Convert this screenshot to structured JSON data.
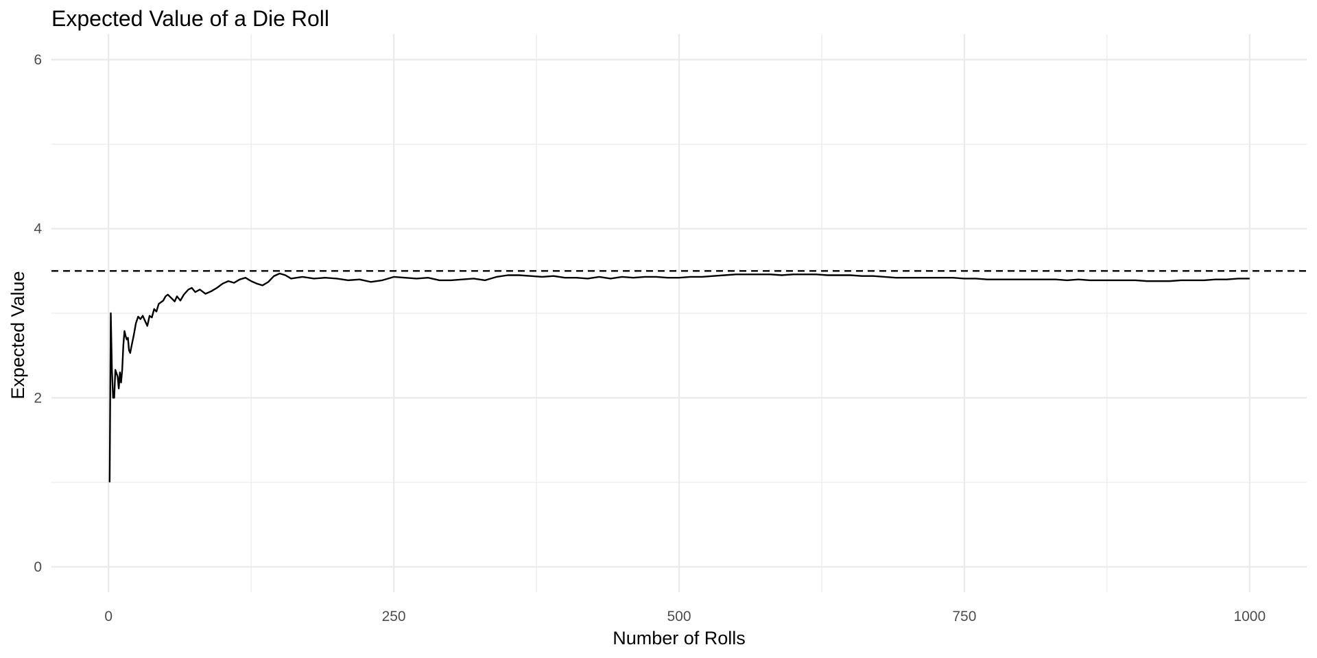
{
  "chart_data": {
    "type": "line",
    "title": "Expected Value of a Die Roll",
    "xlabel": "Number of Rolls",
    "ylabel": "Expected Value",
    "xlim": [
      -50,
      1050
    ],
    "ylim": [
      -0.3,
      6.3
    ],
    "x_ticks": [
      0,
      250,
      500,
      750,
      1000
    ],
    "x_tick_labels": [
      "0",
      "250",
      "500",
      "750",
      "1000"
    ],
    "x_minor_ticks": [
      125,
      375,
      625,
      875
    ],
    "y_ticks": [
      0,
      2,
      4,
      6
    ],
    "y_tick_labels": [
      "0",
      "2",
      "4",
      "6"
    ],
    "y_minor_ticks": [
      1,
      3,
      5
    ],
    "grid": true,
    "legend": "none",
    "reference_line": {
      "y": 3.5,
      "style": "dashed",
      "color": "#000000"
    },
    "series": [
      {
        "color": "#000000",
        "points": [
          [
            1,
            1.0
          ],
          [
            2,
            3.0
          ],
          [
            3,
            2.33
          ],
          [
            4,
            2.0
          ],
          [
            5,
            2.0
          ],
          [
            6,
            2.33
          ],
          [
            7,
            2.29
          ],
          [
            8,
            2.25
          ],
          [
            9,
            2.11
          ],
          [
            10,
            2.3
          ],
          [
            11,
            2.18
          ],
          [
            12,
            2.33
          ],
          [
            13,
            2.62
          ],
          [
            14,
            2.79
          ],
          [
            15,
            2.73
          ],
          [
            16,
            2.69
          ],
          [
            17,
            2.71
          ],
          [
            18,
            2.56
          ],
          [
            19,
            2.53
          ],
          [
            20,
            2.6
          ],
          [
            22,
            2.73
          ],
          [
            24,
            2.88
          ],
          [
            26,
            2.96
          ],
          [
            28,
            2.93
          ],
          [
            30,
            2.97
          ],
          [
            32,
            2.91
          ],
          [
            34,
            2.85
          ],
          [
            36,
            2.97
          ],
          [
            38,
            2.95
          ],
          [
            40,
            3.05
          ],
          [
            42,
            3.02
          ],
          [
            44,
            3.11
          ],
          [
            46,
            3.13
          ],
          [
            48,
            3.15
          ],
          [
            50,
            3.2
          ],
          [
            52,
            3.22
          ],
          [
            55,
            3.18
          ],
          [
            58,
            3.14
          ],
          [
            60,
            3.2
          ],
          [
            63,
            3.15
          ],
          [
            66,
            3.22
          ],
          [
            70,
            3.28
          ],
          [
            73,
            3.3
          ],
          [
            76,
            3.25
          ],
          [
            80,
            3.28
          ],
          [
            85,
            3.23
          ],
          [
            90,
            3.26
          ],
          [
            95,
            3.3
          ],
          [
            100,
            3.35
          ],
          [
            105,
            3.38
          ],
          [
            110,
            3.36
          ],
          [
            115,
            3.4
          ],
          [
            120,
            3.42
          ],
          [
            125,
            3.38
          ],
          [
            130,
            3.35
          ],
          [
            135,
            3.33
          ],
          [
            140,
            3.37
          ],
          [
            145,
            3.44
          ],
          [
            150,
            3.47
          ],
          [
            155,
            3.45
          ],
          [
            160,
            3.41
          ],
          [
            170,
            3.43
          ],
          [
            180,
            3.41
          ],
          [
            190,
            3.42
          ],
          [
            200,
            3.41
          ],
          [
            210,
            3.39
          ],
          [
            220,
            3.4
          ],
          [
            230,
            3.37
          ],
          [
            240,
            3.39
          ],
          [
            250,
            3.43
          ],
          [
            260,
            3.42
          ],
          [
            270,
            3.41
          ],
          [
            280,
            3.42
          ],
          [
            290,
            3.39
          ],
          [
            300,
            3.39
          ],
          [
            310,
            3.4
          ],
          [
            320,
            3.41
          ],
          [
            330,
            3.39
          ],
          [
            340,
            3.43
          ],
          [
            350,
            3.45
          ],
          [
            360,
            3.45
          ],
          [
            370,
            3.44
          ],
          [
            380,
            3.43
          ],
          [
            390,
            3.44
          ],
          [
            400,
            3.42
          ],
          [
            410,
            3.42
          ],
          [
            420,
            3.41
          ],
          [
            430,
            3.43
          ],
          [
            440,
            3.41
          ],
          [
            450,
            3.43
          ],
          [
            460,
            3.42
          ],
          [
            470,
            3.43
          ],
          [
            480,
            3.43
          ],
          [
            490,
            3.42
          ],
          [
            500,
            3.42
          ],
          [
            510,
            3.43
          ],
          [
            520,
            3.43
          ],
          [
            530,
            3.44
          ],
          [
            540,
            3.45
          ],
          [
            550,
            3.46
          ],
          [
            560,
            3.46
          ],
          [
            570,
            3.46
          ],
          [
            580,
            3.46
          ],
          [
            590,
            3.45
          ],
          [
            600,
            3.46
          ],
          [
            610,
            3.46
          ],
          [
            620,
            3.46
          ],
          [
            630,
            3.45
          ],
          [
            640,
            3.45
          ],
          [
            650,
            3.45
          ],
          [
            660,
            3.44
          ],
          [
            670,
            3.44
          ],
          [
            680,
            3.43
          ],
          [
            690,
            3.42
          ],
          [
            700,
            3.42
          ],
          [
            710,
            3.42
          ],
          [
            720,
            3.42
          ],
          [
            730,
            3.42
          ],
          [
            740,
            3.42
          ],
          [
            750,
            3.41
          ],
          [
            760,
            3.41
          ],
          [
            770,
            3.4
          ],
          [
            780,
            3.4
          ],
          [
            790,
            3.4
          ],
          [
            800,
            3.4
          ],
          [
            810,
            3.4
          ],
          [
            820,
            3.4
          ],
          [
            830,
            3.4
          ],
          [
            840,
            3.39
          ],
          [
            850,
            3.4
          ],
          [
            860,
            3.39
          ],
          [
            870,
            3.39
          ],
          [
            880,
            3.39
          ],
          [
            890,
            3.39
          ],
          [
            900,
            3.39
          ],
          [
            910,
            3.38
          ],
          [
            920,
            3.38
          ],
          [
            930,
            3.38
          ],
          [
            940,
            3.39
          ],
          [
            950,
            3.39
          ],
          [
            960,
            3.39
          ],
          [
            970,
            3.4
          ],
          [
            980,
            3.4
          ],
          [
            990,
            3.41
          ],
          [
            1000,
            3.41
          ]
        ]
      }
    ]
  }
}
